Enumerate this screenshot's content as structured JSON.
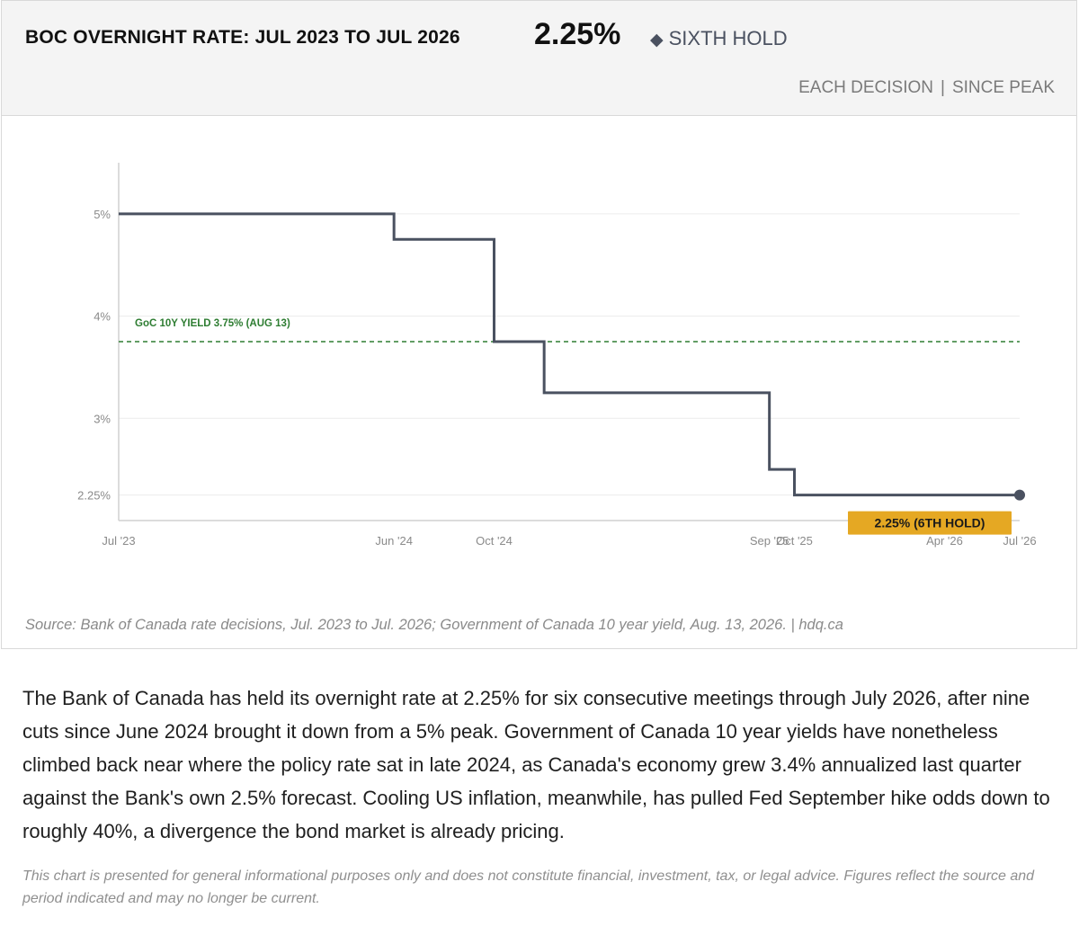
{
  "header": {
    "title": "BOC OVERNIGHT RATE: JUL 2023 TO JUL 2026",
    "headline_value": "2.25%",
    "status_icon": "diamond-icon",
    "status_text": "SIXTH HOLD",
    "toggles": [
      "EACH DECISION",
      "SINCE PEAK"
    ],
    "toggle_separator": "|"
  },
  "chart_data": {
    "type": "line",
    "step": true,
    "line_color": "#4a5160",
    "title": "",
    "xlabel": "",
    "ylabel": "",
    "ylim": [
      2.0,
      5.5
    ],
    "yticks": [
      {
        "value": 5.0,
        "label": "5%"
      },
      {
        "value": 4.0,
        "label": "4%"
      },
      {
        "value": 3.0,
        "label": "3%"
      },
      {
        "value": 2.25,
        "label": "2.25%"
      }
    ],
    "xlim": [
      "2023-07",
      "2026-07"
    ],
    "xticks": [
      {
        "value": "2023-07",
        "label": "Jul '23"
      },
      {
        "value": "2024-06",
        "label": "Jun '24"
      },
      {
        "value": "2024-10",
        "label": "Oct '24"
      },
      {
        "value": "2025-09",
        "label": "Sep '25"
      },
      {
        "value": "2025-10",
        "label": "Oct '25"
      },
      {
        "value": "2026-04",
        "label": "Apr '26"
      },
      {
        "value": "2026-07",
        "label": "Jul '26"
      }
    ],
    "series": [
      {
        "points": [
          {
            "x": "2023-07",
            "y": 5.0
          },
          {
            "x": "2024-06",
            "y": 4.75
          },
          {
            "x": "2024-10",
            "y": 3.75
          },
          {
            "x": "2024-12",
            "y": 3.25
          },
          {
            "x": "2025-09",
            "y": 2.5
          },
          {
            "x": "2025-10",
            "y": 2.25
          },
          {
            "x": "2026-07",
            "y": 2.25
          }
        ]
      }
    ],
    "reference_line": {
      "value": 3.75,
      "label": "GoC 10Y YIELD 3.75% (AUG 13)",
      "color": "#2e7d32",
      "style": "dashed"
    },
    "end_marker": {
      "x": "2026-07",
      "y": 2.25,
      "label": "2.25% (6TH HOLD)",
      "color": "#e5a823"
    },
    "grid": true
  },
  "source": "Source: Bank of Canada rate decisions, Jul. 2023 to Jul. 2026; Government of Canada 10 year yield, Aug. 13, 2026.  |  hdq.ca",
  "body_text": "The Bank of Canada has held its overnight rate at 2.25% for six consecutive meetings through July 2026, after nine cuts since June 2024 brought it down from a 5% peak. Government of Canada 10 year yields have nonetheless climbed back near where the policy rate sat in late 2024, as Canada's economy grew 3.4% annualized last quarter against the Bank's own 2.5% forecast. Cooling US inflation, meanwhile, has pulled Fed September hike odds down to roughly 40%, a divergence the bond market is already pricing.",
  "disclaimer": "This chart is presented for general informational purposes only and does not constitute financial, investment, tax, or legal advice. Figures reflect the source and period indicated and may no longer be current."
}
